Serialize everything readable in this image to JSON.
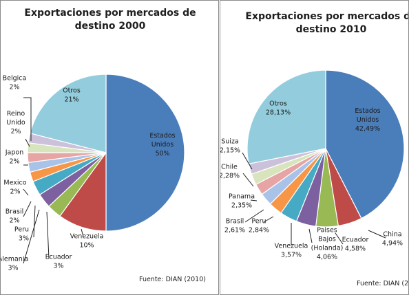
{
  "chart_data": [
    {
      "type": "pie",
      "title_line1": "Exportaciones por mercados de",
      "title_line2": "destino 2000",
      "source": "Fuente: DIAN (2010)",
      "slices": [
        {
          "label": "Estados Unidos",
          "label_lines": [
            "Estados",
            "Unidos"
          ],
          "display": "50%",
          "value": 50,
          "color": "#4a7ebb"
        },
        {
          "label": "Venezuela",
          "label_lines": [
            "Venezuela"
          ],
          "display": "10%",
          "value": 10,
          "color": "#be4b48"
        },
        {
          "label": "Ecuador",
          "label_lines": [
            "Ecuador"
          ],
          "display": "3%",
          "value": 3,
          "color": "#98b954"
        },
        {
          "label": "Alemania",
          "label_lines": [
            "Alemania"
          ],
          "display": "3%",
          "value": 3,
          "color": "#7d60a0"
        },
        {
          "label": "Peru",
          "label_lines": [
            "Peru"
          ],
          "display": "3%",
          "value": 3,
          "color": "#46aac5"
        },
        {
          "label": "Brasil",
          "label_lines": [
            "Brasil"
          ],
          "display": "2%",
          "value": 2,
          "color": "#f79646"
        },
        {
          "label": "Mexico",
          "label_lines": [
            "Mexico"
          ],
          "display": "2%",
          "value": 2,
          "color": "#a9c3e8"
        },
        {
          "label": "Japon",
          "label_lines": [
            "Japon"
          ],
          "display": "2%",
          "value": 2,
          "color": "#e6a5a4"
        },
        {
          "label": "Reino Unido",
          "label_lines": [
            "Reino",
            "Unido"
          ],
          "display": "2%",
          "value": 2,
          "color": "#d7e4bd"
        },
        {
          "label": "Belgica",
          "label_lines": [
            "Belgica"
          ],
          "display": "2%",
          "value": 2,
          "color": "#ccc1da"
        },
        {
          "label": "Otros",
          "label_lines": [
            "Otros"
          ],
          "display": "21%",
          "value": 21,
          "color": "#93cddd"
        }
      ]
    },
    {
      "type": "pie",
      "title_line1": "Exportaciones por mercados de",
      "title_line2": "destino 2010",
      "source": "Fuente: DIAN (2",
      "slices": [
        {
          "label": "Estados Unidos",
          "label_lines": [
            "Estados",
            "Unidos"
          ],
          "display": "42,49%",
          "value": 42.49,
          "color": "#4a7ebb"
        },
        {
          "label": "China",
          "label_lines": [
            "China"
          ],
          "display": "4,94%",
          "value": 4.94,
          "color": "#be4b48"
        },
        {
          "label": "Ecuador",
          "label_lines": [
            "Ecuador"
          ],
          "display": "4,58%",
          "value": 4.58,
          "color": "#98b954"
        },
        {
          "label": "Paises Bajos (Holanda)",
          "label_lines": [
            "Paises",
            "Bajos",
            "(Holanda)"
          ],
          "display": "4,06%",
          "value": 4.06,
          "color": "#7d60a0"
        },
        {
          "label": "Venezuela",
          "label_lines": [
            "Venezuela"
          ],
          "display": "3,57%",
          "value": 3.57,
          "color": "#46aac5"
        },
        {
          "label": "Peru",
          "label_lines": [
            "Peru"
          ],
          "display": "2,84%",
          "value": 2.84,
          "color": "#f79646"
        },
        {
          "label": "Brasil",
          "label_lines": [
            "Brasil"
          ],
          "display": "2,61%",
          "value": 2.61,
          "color": "#a9c3e8"
        },
        {
          "label": "Panama",
          "label_lines": [
            "Panama"
          ],
          "display": "2,35%",
          "value": 2.35,
          "color": "#e6a5a4"
        },
        {
          "label": "Chile",
          "label_lines": [
            "Chile"
          ],
          "display": "2,28%",
          "value": 2.28,
          "color": "#d7e4bd"
        },
        {
          "label": "Suiza",
          "label_lines": [
            "Suiza"
          ],
          "display": "2,15%",
          "value": 2.15,
          "color": "#ccc1da"
        },
        {
          "label": "Otros",
          "label_lines": [
            "Otros"
          ],
          "display": "28,13%",
          "value": 28.13,
          "color": "#93cddd"
        }
      ]
    }
  ]
}
